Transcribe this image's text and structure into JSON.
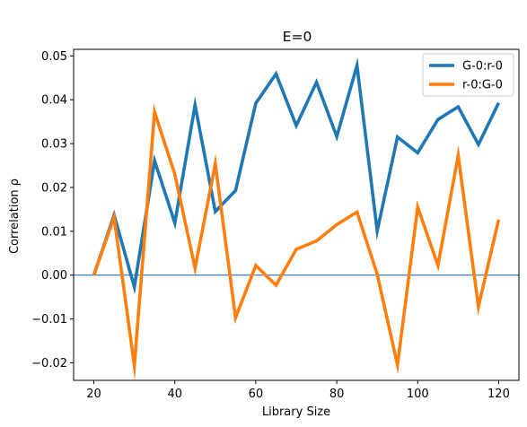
{
  "chart_data": {
    "type": "line",
    "title": "E=0",
    "xlabel": "Library Size",
    "ylabel": "Correlation ρ",
    "xlim": [
      15,
      125
    ],
    "ylim": [
      -0.024,
      0.0515
    ],
    "xticks": [
      20,
      40,
      60,
      80,
      100,
      120
    ],
    "xtick_labels": [
      "20",
      "40",
      "60",
      "80",
      "100",
      "120"
    ],
    "yticks": [
      -0.02,
      -0.01,
      0.0,
      0.01,
      0.02,
      0.03,
      0.04,
      0.05
    ],
    "ytick_labels": [
      "−0.02",
      "−0.01",
      "0.00",
      "0.01",
      "0.02",
      "0.03",
      "0.04",
      "0.05"
    ],
    "grid": false,
    "legend_position": "top-right",
    "reference_line": {
      "y": 0,
      "color": "#1f77b4"
    },
    "x": [
      20,
      25,
      30,
      35,
      40,
      45,
      50,
      55,
      60,
      65,
      70,
      75,
      80,
      85,
      90,
      95,
      100,
      105,
      110,
      115,
      120
    ],
    "series": [
      {
        "name": "G-0:r-0",
        "color": "#1f77b4",
        "values": [
          0.0,
          0.0137,
          -0.0027,
          0.0261,
          0.0119,
          0.0388,
          0.0145,
          0.0193,
          0.0392,
          0.0459,
          0.0341,
          0.044,
          0.0316,
          0.0478,
          0.0101,
          0.0315,
          0.0279,
          0.0355,
          0.0384,
          0.0298,
          0.0393
        ]
      },
      {
        "name": "r-0:G-0",
        "color": "#ff7f0e",
        "values": [
          0.0,
          0.0132,
          -0.0206,
          0.0372,
          0.023,
          0.0016,
          0.0254,
          -0.0097,
          0.0022,
          -0.0023,
          0.0059,
          0.0078,
          0.0115,
          0.0144,
          0.0002,
          -0.0205,
          0.0155,
          0.0022,
          0.0273,
          -0.0072,
          0.0127
        ]
      }
    ]
  }
}
